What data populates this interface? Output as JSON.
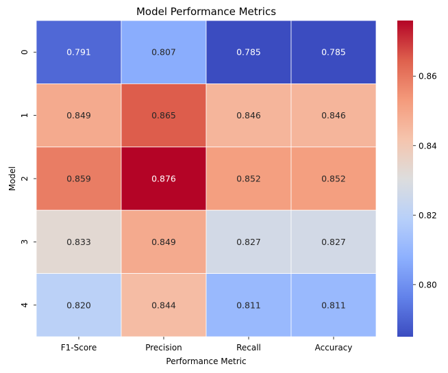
{
  "chart_data": {
    "type": "heatmap",
    "title": "Model Performance Metrics",
    "xlabel": "Performance Metric",
    "ylabel": "Model",
    "x_categories": [
      "F1-Score",
      "Precision",
      "Recall",
      "Accuracy"
    ],
    "y_categories": [
      "0",
      "1",
      "2",
      "3",
      "4"
    ],
    "values": [
      [
        0.791,
        0.807,
        0.785,
        0.785
      ],
      [
        0.849,
        0.865,
        0.846,
        0.846
      ],
      [
        0.859,
        0.876,
        0.852,
        0.852
      ],
      [
        0.833,
        0.849,
        0.827,
        0.827
      ],
      [
        0.82,
        0.844,
        0.811,
        0.811
      ]
    ],
    "value_labels": [
      [
        "0.791",
        "0.807",
        "0.785",
        "0.785"
      ],
      [
        "0.849",
        "0.865",
        "0.846",
        "0.846"
      ],
      [
        "0.859",
        "0.876",
        "0.852",
        "0.852"
      ],
      [
        "0.833",
        "0.849",
        "0.827",
        "0.827"
      ],
      [
        "0.820",
        "0.844",
        "0.811",
        "0.811"
      ]
    ],
    "colormap": "coolwarm",
    "colorbar": {
      "vmin": 0.785,
      "vmax": 0.876,
      "ticks": [
        0.8,
        0.82,
        0.84,
        0.86
      ],
      "tick_labels": [
        "0.80",
        "0.82",
        "0.84",
        "0.86"
      ]
    }
  }
}
